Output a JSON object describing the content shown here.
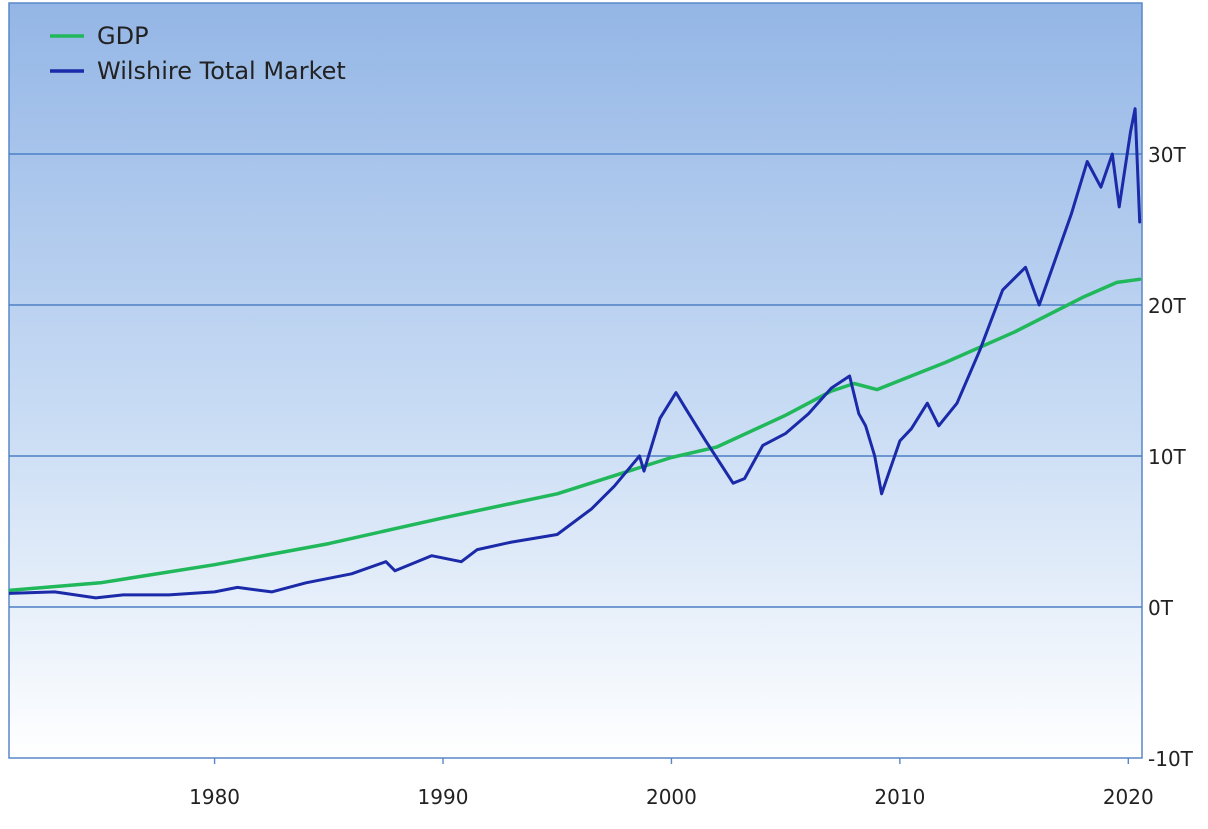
{
  "chart_data": {
    "type": "line",
    "x_unit": "year",
    "xlim": [
      1971,
      2020.6
    ],
    "ylim": [
      -10,
      40
    ],
    "y_axis_position": "right",
    "x_ticks": [
      1980,
      1990,
      2000,
      2010,
      2020
    ],
    "x_tick_labels": [
      "1980",
      "1990",
      "2000",
      "2010",
      "2020"
    ],
    "y_ticks": [
      -10,
      0,
      10,
      20,
      30
    ],
    "y_tick_labels": [
      "-10T",
      "0T",
      "10T",
      "20T",
      "30T"
    ],
    "grid": "horizontal",
    "legend": "top-left",
    "series": [
      {
        "name": "GDP",
        "color": "#20b85a",
        "x": [
          1971,
          1975,
          1980,
          1985,
          1990,
          1995,
          2000,
          2002,
          2005,
          2007,
          2008,
          2009,
          2010,
          2012,
          2015,
          2018,
          2019.5,
          2020.5
        ],
        "y": [
          1.1,
          1.6,
          2.8,
          4.2,
          5.9,
          7.5,
          9.9,
          10.6,
          12.7,
          14.3,
          14.8,
          14.4,
          15.0,
          16.2,
          18.2,
          20.5,
          21.5,
          21.7
        ]
      },
      {
        "name": "Wilshire Total Market",
        "color": "#1a2aa8",
        "x": [
          1971,
          1973,
          1974.8,
          1976,
          1978,
          1980,
          1981,
          1982.5,
          1984,
          1986,
          1987.5,
          1987.9,
          1989.5,
          1990.8,
          1991.5,
          1993,
          1995,
          1996.5,
          1997.5,
          1998.6,
          1998.8,
          1999.5,
          2000.2,
          2000.6,
          2001.5,
          2001.8,
          2002.7,
          2003.2,
          2004,
          2005,
          2006,
          2007,
          2007.8,
          2008.2,
          2008.5,
          2008.9,
          2009.2,
          2010,
          2010.5,
          2011.2,
          2011.7,
          2012.5,
          2013.5,
          2014.5,
          2015.5,
          2016.1,
          2016.8,
          2017.5,
          2018.2,
          2018.8,
          2019.3,
          2019.6,
          2020.1,
          2020.3,
          2020.5
        ],
        "y": [
          0.9,
          1.0,
          0.6,
          0.8,
          0.8,
          1.0,
          1.3,
          1.0,
          1.6,
          2.2,
          3.0,
          2.4,
          3.4,
          3.0,
          3.8,
          4.3,
          4.8,
          6.5,
          8.0,
          10.0,
          9.0,
          12.5,
          14.2,
          13.2,
          11.0,
          10.3,
          8.2,
          8.5,
          10.7,
          11.5,
          12.8,
          14.5,
          15.3,
          12.8,
          12.0,
          10.0,
          7.5,
          11.0,
          11.8,
          13.5,
          12.0,
          13.5,
          17.0,
          21.0,
          22.5,
          20.0,
          23.0,
          26.0,
          29.5,
          27.8,
          30.0,
          26.5,
          31.5,
          33.0,
          25.5
        ]
      }
    ]
  }
}
